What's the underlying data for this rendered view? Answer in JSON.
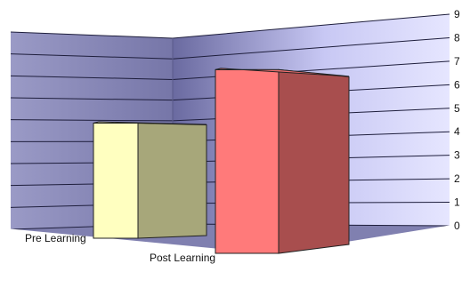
{
  "chart_data": {
    "type": "bar",
    "categories": [
      "Pre Learning",
      "Post Learning"
    ],
    "values": [
      5.2,
      8.3
    ],
    "ylim": [
      0,
      9
    ],
    "yticks": [
      "0",
      "1",
      "2",
      "3",
      "4",
      "5",
      "6",
      "7",
      "8",
      "9"
    ],
    "grid": true,
    "title": "",
    "xlabel": "",
    "ylabel": "",
    "colors": {
      "bars": [
        {
          "front": "#ffffc0",
          "side": "#a7a77a",
          "top": "#f3f3b8"
        },
        {
          "front": "#ff7a7a",
          "side": "#a84e4e",
          "top": "#f07070"
        }
      ],
      "grid": "#1e1e3c",
      "floor": "#8080b0",
      "wall_left": "#8c8cb8",
      "wall_back_light": "#dcdcff",
      "wall_back_dark": "#6a6aa0"
    }
  }
}
